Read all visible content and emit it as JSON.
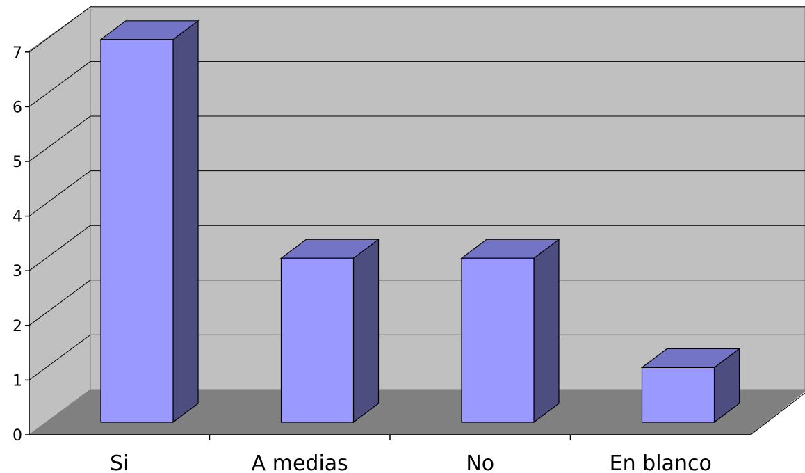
{
  "chart_data": {
    "type": "bar",
    "categories": [
      "Si",
      "A medias",
      "No",
      "En blanco"
    ],
    "values": [
      7,
      3,
      3,
      1
    ],
    "ylim": [
      0,
      7
    ],
    "yticks": [
      0,
      1,
      2,
      3,
      4,
      5,
      6,
      7
    ],
    "grid": true,
    "legend": "none",
    "colors": {
      "bar_front": "#9999ff",
      "bar_top": "#7474c6",
      "bar_side": "#4d4d80",
      "back_wall": "#c0c0c0",
      "side_wall": "#c0c0c0",
      "floor": "#808080"
    }
  }
}
